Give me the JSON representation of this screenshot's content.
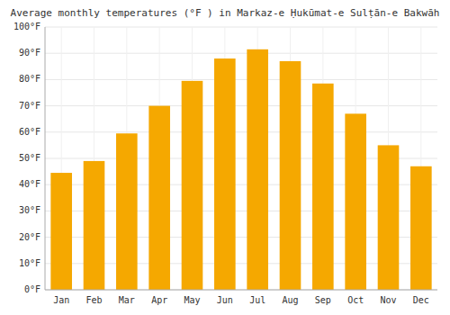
{
  "chart_data": {
    "type": "bar",
    "title": "Average monthly temperatures (°F ) in Markaz-e Ḥukūmat-e Sulṭān-e Bakwāh",
    "categories": [
      "Jan",
      "Feb",
      "Mar",
      "Apr",
      "May",
      "Jun",
      "Jul",
      "Aug",
      "Sep",
      "Oct",
      "Nov",
      "Dec"
    ],
    "values": [
      44.5,
      49,
      59.5,
      70,
      79.5,
      88,
      91.5,
      87,
      78.5,
      67,
      55,
      47
    ],
    "color": "#F5A800",
    "ylim": [
      0,
      100
    ],
    "yticks": [
      {
        "value": 0,
        "label": "0°F"
      },
      {
        "value": 10,
        "label": "10°F"
      },
      {
        "value": 20,
        "label": "20°F"
      },
      {
        "value": 30,
        "label": "30°F"
      },
      {
        "value": 40,
        "label": "40°F"
      },
      {
        "value": 50,
        "label": "50°F"
      },
      {
        "value": 60,
        "label": "60°F"
      },
      {
        "value": 70,
        "label": "70°F"
      },
      {
        "value": 80,
        "label": "80°F"
      },
      {
        "value": 90,
        "label": "90°F"
      },
      {
        "value": 100,
        "label": "100°F"
      }
    ],
    "grid": true
  }
}
